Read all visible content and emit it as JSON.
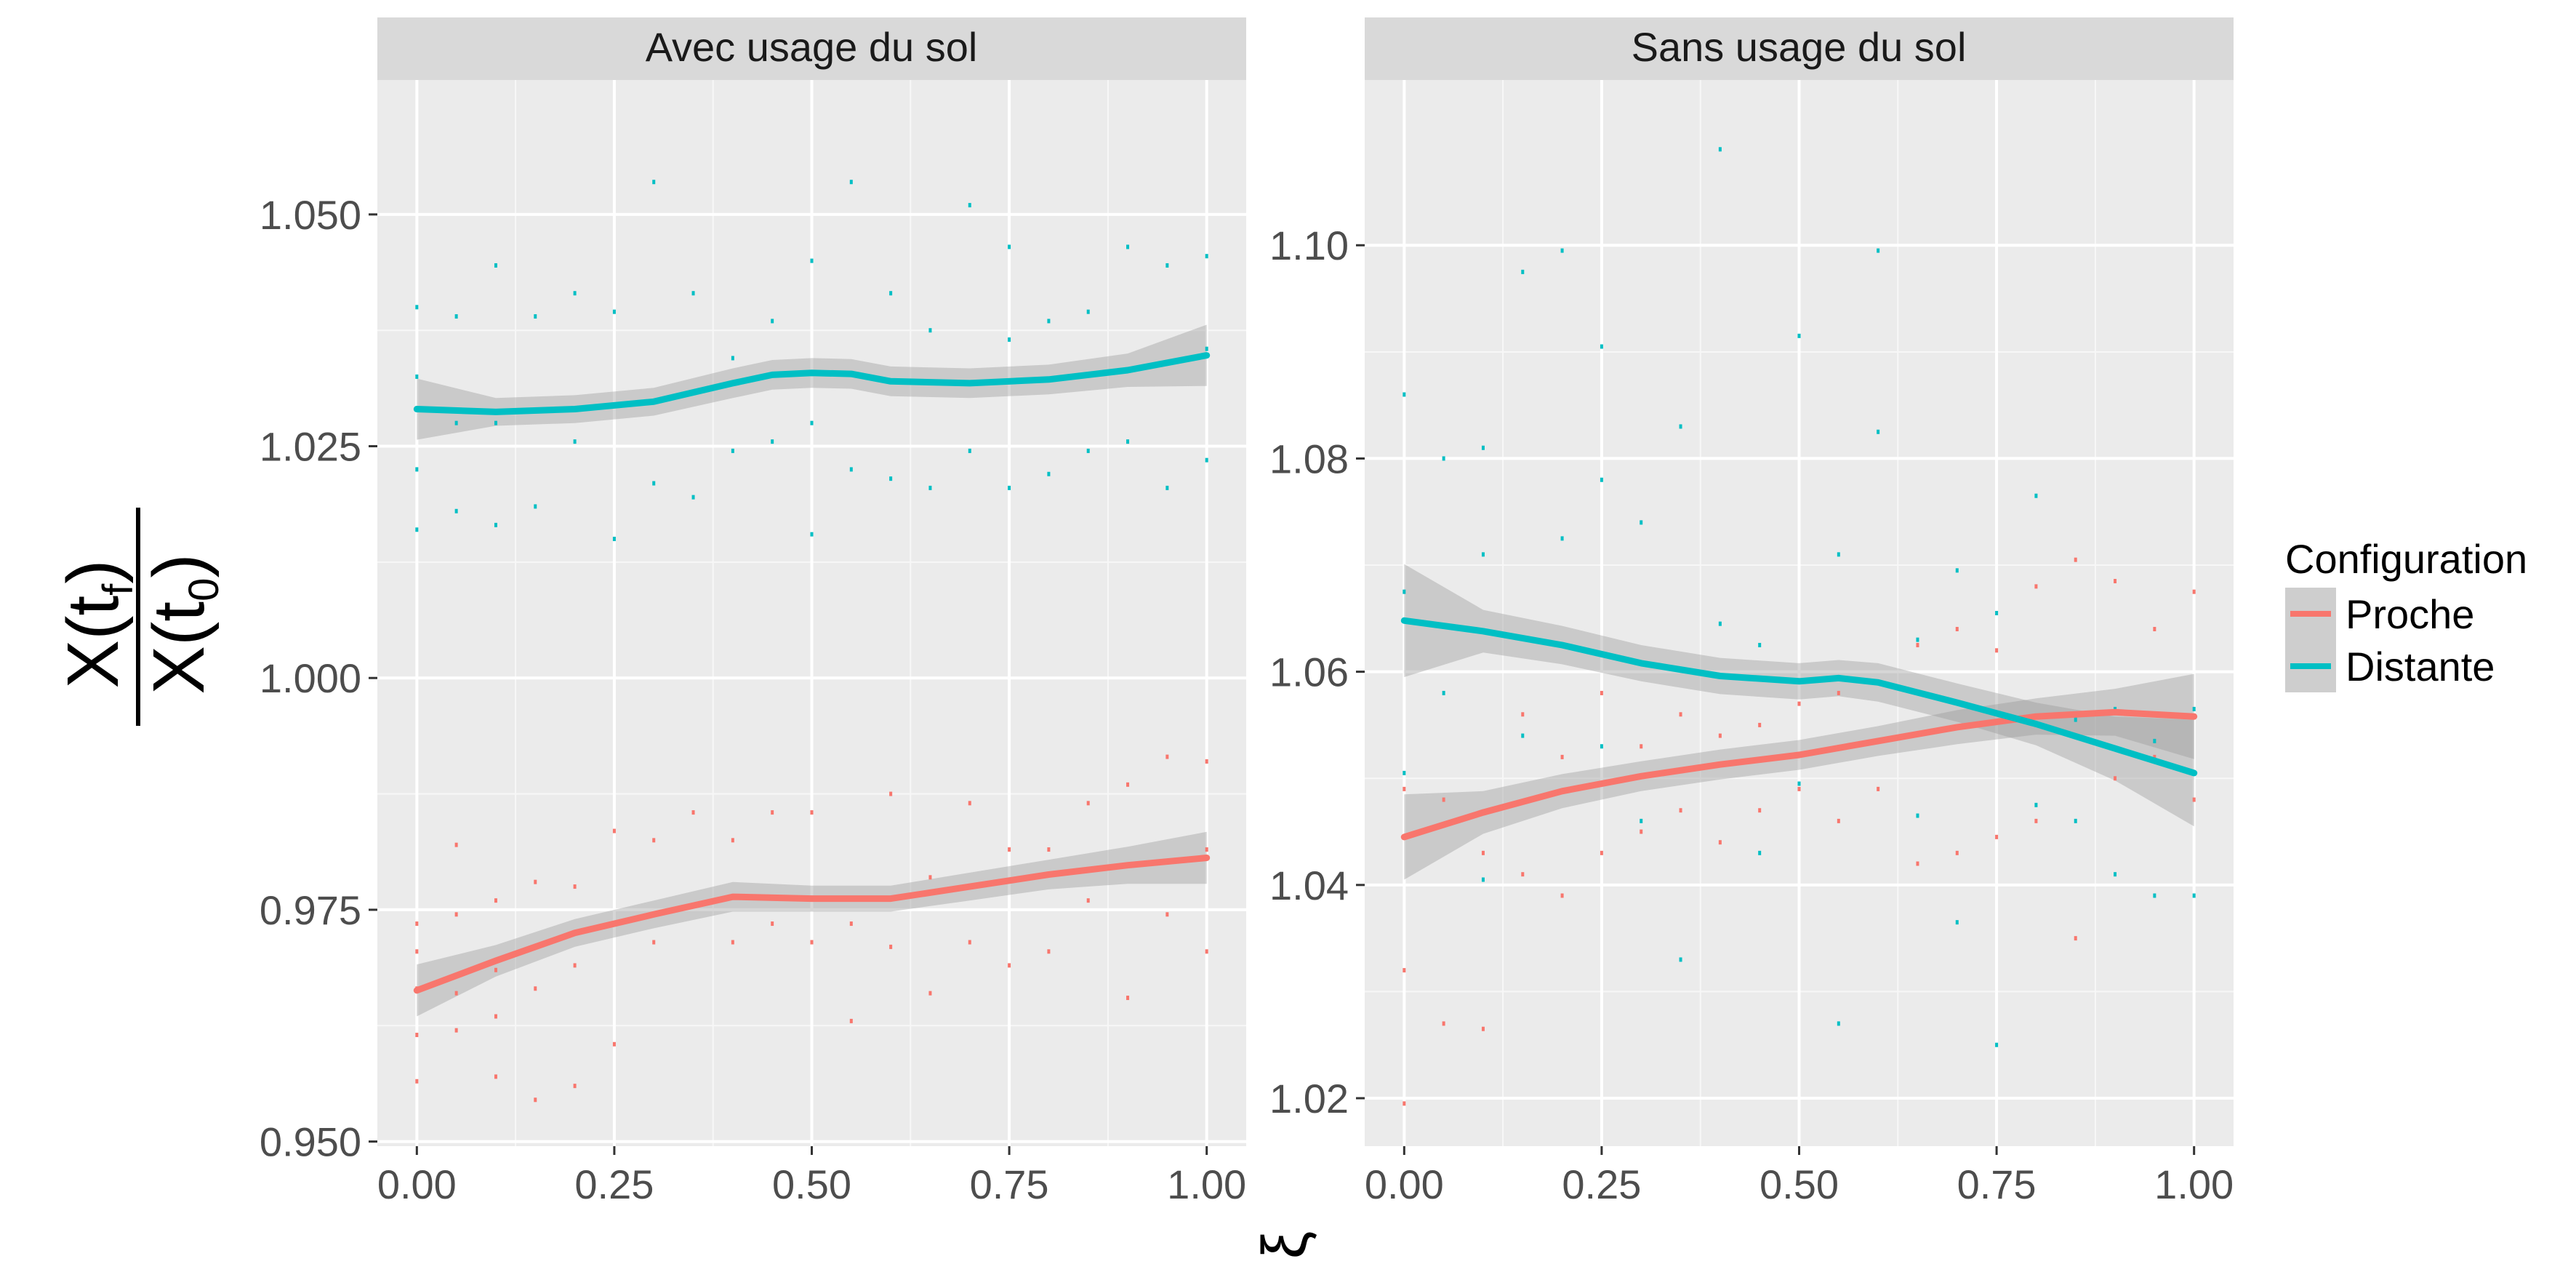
{
  "ylabel": {
    "numerator": "X(t",
    "numerator_sub": "f",
    "denominator": "X(t",
    "denominator_sub": "0",
    "close": ")"
  },
  "xlabel": "ξ",
  "legend": {
    "title": "Configuration",
    "items": [
      {
        "label": "Proche",
        "color": "#F8766D"
      },
      {
        "label": "Distante",
        "color": "#00BFC4"
      }
    ]
  },
  "chart_data": [
    {
      "type": "scatter",
      "title": "Avec usage du sol",
      "xlim": [
        -0.05,
        1.05
      ],
      "ylim": [
        0.9495,
        1.0645
      ],
      "xticks": [
        0.0,
        0.25,
        0.5,
        0.75,
        1.0
      ],
      "xtick_labels": [
        "0.00",
        "0.25",
        "0.50",
        "0.75",
        "1.00"
      ],
      "yticks": [
        0.95,
        0.975,
        1.0,
        1.025,
        1.05
      ],
      "ytick_labels": [
        "0.950",
        "0.975",
        "1.000",
        "1.025",
        "1.050"
      ],
      "grid": true,
      "series": [
        {
          "name": "Proche",
          "color": "#F8766D",
          "smooth_x": [
            0.0,
            0.1,
            0.2,
            0.3,
            0.4,
            0.5,
            0.6,
            0.7,
            0.8,
            0.9,
            1.0
          ],
          "smooth_y": [
            0.9663,
            0.9695,
            0.9725,
            0.9745,
            0.9764,
            0.9762,
            0.9762,
            0.9775,
            0.9788,
            0.9798,
            0.9806
          ],
          "ribbon_lo": [
            0.9635,
            0.9678,
            0.971,
            0.973,
            0.9748,
            0.9748,
            0.9748,
            0.976,
            0.9772,
            0.9778,
            0.9778
          ],
          "ribbon_hi": [
            0.9691,
            0.9712,
            0.974,
            0.976,
            0.978,
            0.9776,
            0.9776,
            0.979,
            0.9804,
            0.9818,
            0.9834
          ],
          "points_x": [
            0.0,
            0.0,
            0.0,
            0.0,
            0.0,
            0.05,
            0.05,
            0.05,
            0.05,
            0.1,
            0.1,
            0.1,
            0.1,
            0.15,
            0.15,
            0.15,
            0.2,
            0.2,
            0.2,
            0.25,
            0.25,
            0.25,
            0.3,
            0.3,
            0.35,
            0.35,
            0.4,
            0.4,
            0.45,
            0.45,
            0.5,
            0.5,
            0.55,
            0.55,
            0.6,
            0.6,
            0.65,
            0.65,
            0.7,
            0.7,
            0.75,
            0.75,
            0.8,
            0.8,
            0.85,
            0.85,
            0.9,
            0.9,
            0.95,
            0.95,
            1.0,
            1.0,
            1.0
          ],
          "points_y": [
            0.9565,
            0.9615,
            0.9665,
            0.9705,
            0.9735,
            0.962,
            0.966,
            0.9745,
            0.982,
            0.957,
            0.9635,
            0.9685,
            0.976,
            0.9545,
            0.9665,
            0.978,
            0.956,
            0.969,
            0.9775,
            0.9605,
            0.9735,
            0.9835,
            0.9715,
            0.9825,
            0.9755,
            0.9855,
            0.9715,
            0.9825,
            0.9735,
            0.9855,
            0.9715,
            0.9855,
            0.963,
            0.9735,
            0.971,
            0.9875,
            0.966,
            0.9785,
            0.9715,
            0.9865,
            0.969,
            0.9815,
            0.9705,
            0.9815,
            0.976,
            0.9865,
            0.9655,
            0.9885,
            0.9745,
            0.9915,
            0.9705,
            0.9815,
            0.991
          ]
        },
        {
          "name": "Distante",
          "color": "#00BFC4",
          "smooth_x": [
            0.0,
            0.1,
            0.2,
            0.3,
            0.4,
            0.45,
            0.5,
            0.55,
            0.6,
            0.7,
            0.8,
            0.9,
            1.0
          ],
          "smooth_y": [
            1.029,
            1.0287,
            1.029,
            1.0298,
            1.0318,
            1.0327,
            1.0329,
            1.0328,
            1.032,
            1.0318,
            1.0322,
            1.0332,
            1.0348
          ],
          "ribbon_lo": [
            1.0257,
            1.0272,
            1.0275,
            1.0283,
            1.0302,
            1.0311,
            1.0313,
            1.0312,
            1.0304,
            1.0302,
            1.0306,
            1.0314,
            1.0315
          ],
          "ribbon_hi": [
            1.0323,
            1.0302,
            1.0305,
            1.0313,
            1.0334,
            1.0343,
            1.0345,
            1.0344,
            1.0336,
            1.0334,
            1.0338,
            1.035,
            1.0381
          ],
          "points_x": [
            0.0,
            0.0,
            0.0,
            0.0,
            0.05,
            0.05,
            0.05,
            0.1,
            0.1,
            0.1,
            0.15,
            0.15,
            0.2,
            0.2,
            0.25,
            0.25,
            0.3,
            0.3,
            0.35,
            0.35,
            0.4,
            0.4,
            0.45,
            0.45,
            0.5,
            0.5,
            0.5,
            0.55,
            0.55,
            0.6,
            0.6,
            0.65,
            0.65,
            0.7,
            0.7,
            0.75,
            0.75,
            0.75,
            0.8,
            0.8,
            0.85,
            0.85,
            0.9,
            0.9,
            0.95,
            0.95,
            1.0,
            1.0,
            1.0
          ],
          "points_y": [
            1.016,
            1.0225,
            1.0325,
            1.04,
            1.018,
            1.0275,
            1.039,
            1.0165,
            1.0275,
            1.0445,
            1.0185,
            1.039,
            1.0255,
            1.0415,
            1.015,
            1.0395,
            1.021,
            1.0535,
            1.0195,
            1.0415,
            1.0245,
            1.0345,
            1.0255,
            1.0385,
            1.0155,
            1.0275,
            1.045,
            1.0225,
            1.0535,
            1.0215,
            1.0415,
            1.0205,
            1.0375,
            1.0245,
            1.051,
            1.0205,
            1.0365,
            1.0465,
            1.022,
            1.0385,
            1.0245,
            1.0395,
            1.0255,
            1.0465,
            1.0205,
            1.0445,
            1.0235,
            1.0355,
            1.0455
          ]
        }
      ]
    },
    {
      "type": "scatter",
      "title": "Sans usage du sol",
      "xlim": [
        -0.05,
        1.05
      ],
      "ylim": [
        1.0155,
        1.1155
      ],
      "xticks": [
        0.0,
        0.25,
        0.5,
        0.75,
        1.0
      ],
      "xtick_labels": [
        "0.00",
        "0.25",
        "0.50",
        "0.75",
        "1.00"
      ],
      "yticks": [
        1.02,
        1.04,
        1.06,
        1.08,
        1.1
      ],
      "ytick_labels": [
        "1.02",
        "1.04",
        "1.06",
        "1.08",
        "1.10"
      ],
      "grid": true,
      "series": [
        {
          "name": "Proche",
          "color": "#F8766D",
          "smooth_x": [
            0.0,
            0.1,
            0.2,
            0.3,
            0.4,
            0.5,
            0.6,
            0.7,
            0.8,
            0.9,
            1.0
          ],
          "smooth_y": [
            1.0445,
            1.0468,
            1.0488,
            1.0502,
            1.0513,
            1.0522,
            1.0535,
            1.0548,
            1.0558,
            1.0562,
            1.0558
          ],
          "ribbon_lo": [
            1.0405,
            1.0448,
            1.0472,
            1.0488,
            1.0499,
            1.0508,
            1.0521,
            1.0532,
            1.0541,
            1.054,
            1.0518
          ],
          "ribbon_hi": [
            1.0485,
            1.0488,
            1.0504,
            1.0516,
            1.0527,
            1.0536,
            1.0549,
            1.0564,
            1.0575,
            1.0584,
            1.0598
          ],
          "points_x": [
            0.0,
            0.0,
            0.0,
            0.05,
            0.05,
            0.1,
            0.1,
            0.15,
            0.15,
            0.2,
            0.2,
            0.25,
            0.25,
            0.3,
            0.3,
            0.35,
            0.35,
            0.4,
            0.4,
            0.45,
            0.45,
            0.5,
            0.5,
            0.55,
            0.55,
            0.6,
            0.65,
            0.65,
            0.7,
            0.7,
            0.75,
            0.75,
            0.8,
            0.8,
            0.85,
            0.85,
            0.9,
            0.9,
            0.95,
            0.95,
            1.0,
            1.0
          ],
          "points_y": [
            1.0195,
            1.032,
            1.049,
            1.027,
            1.048,
            1.0265,
            1.043,
            1.041,
            1.056,
            1.039,
            1.052,
            1.043,
            1.058,
            1.045,
            1.053,
            1.047,
            1.056,
            1.044,
            1.054,
            1.047,
            1.055,
            1.049,
            1.057,
            1.046,
            1.058,
            1.049,
            1.042,
            1.0625,
            1.043,
            1.064,
            1.0445,
            1.062,
            1.046,
            1.068,
            1.035,
            1.0705,
            1.05,
            1.0685,
            1.052,
            1.064,
            1.048,
            1.0675
          ]
        },
        {
          "name": "Distante",
          "color": "#00BFC4",
          "smooth_x": [
            0.0,
            0.1,
            0.2,
            0.3,
            0.4,
            0.5,
            0.55,
            0.6,
            0.7,
            0.8,
            0.9,
            1.0
          ],
          "smooth_y": [
            1.0648,
            1.0638,
            1.0625,
            1.0608,
            1.0596,
            1.0591,
            1.0594,
            1.059,
            1.0571,
            1.0551,
            1.0528,
            1.0505
          ],
          "ribbon_lo": [
            1.0595,
            1.0618,
            1.0607,
            1.0591,
            1.0579,
            1.0574,
            1.0577,
            1.0572,
            1.0553,
            1.0531,
            1.0498,
            1.0455
          ],
          "ribbon_hi": [
            1.0701,
            1.0658,
            1.0643,
            1.0625,
            1.0613,
            1.0608,
            1.0611,
            1.0608,
            1.0589,
            1.0571,
            1.0558,
            1.0555
          ],
          "points_x": [
            0.0,
            0.0,
            0.0,
            0.05,
            0.05,
            0.1,
            0.1,
            0.1,
            0.15,
            0.15,
            0.2,
            0.2,
            0.25,
            0.25,
            0.25,
            0.3,
            0.3,
            0.35,
            0.35,
            0.4,
            0.4,
            0.45,
            0.45,
            0.5,
            0.5,
            0.55,
            0.55,
            0.6,
            0.6,
            0.65,
            0.65,
            0.7,
            0.7,
            0.75,
            0.75,
            0.8,
            0.8,
            0.85,
            0.85,
            0.9,
            0.9,
            0.95,
            0.95,
            1.0,
            1.0
          ],
          "points_y": [
            1.0505,
            1.0675,
            1.086,
            1.058,
            1.08,
            1.0405,
            1.071,
            1.081,
            1.054,
            1.0975,
            1.0725,
            1.0995,
            1.053,
            1.078,
            1.0905,
            1.046,
            1.074,
            1.033,
            1.083,
            1.0645,
            1.109,
            1.043,
            1.0625,
            1.0495,
            1.0915,
            1.027,
            1.071,
            1.0825,
            1.0995,
            1.0465,
            1.063,
            1.0365,
            1.0695,
            1.025,
            1.0655,
            1.0475,
            1.0765,
            1.046,
            1.0555,
            1.041,
            1.0565,
            1.039,
            1.0535,
            1.039,
            1.0565
          ]
        }
      ]
    }
  ]
}
